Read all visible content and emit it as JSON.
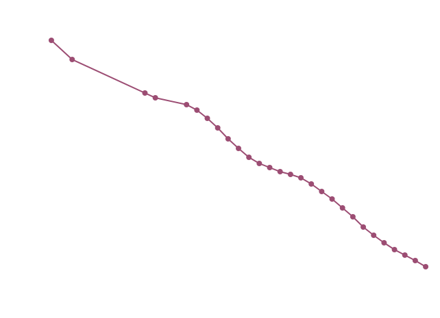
{
  "chart_data": {
    "type": "line",
    "x": [
      0,
      2,
      9,
      10,
      13,
      14,
      15,
      16,
      17,
      18,
      19,
      20,
      21,
      22,
      23,
      24,
      25,
      26,
      27,
      28,
      29,
      30,
      31,
      32,
      33,
      34,
      35,
      36
    ],
    "series": [
      {
        "color": "#9c4d73",
        "values": [
          406,
          378,
          329,
          322,
          312,
          304,
          292,
          278,
          262,
          248,
          235,
          226,
          220,
          214,
          210,
          205,
          196,
          185,
          174,
          161,
          148,
          133,
          121,
          110,
          100,
          92,
          84,
          75
        ]
      }
    ],
    "xlim": [
      -4.94,
      37.38
    ],
    "ylim": [
      0,
      465
    ]
  }
}
